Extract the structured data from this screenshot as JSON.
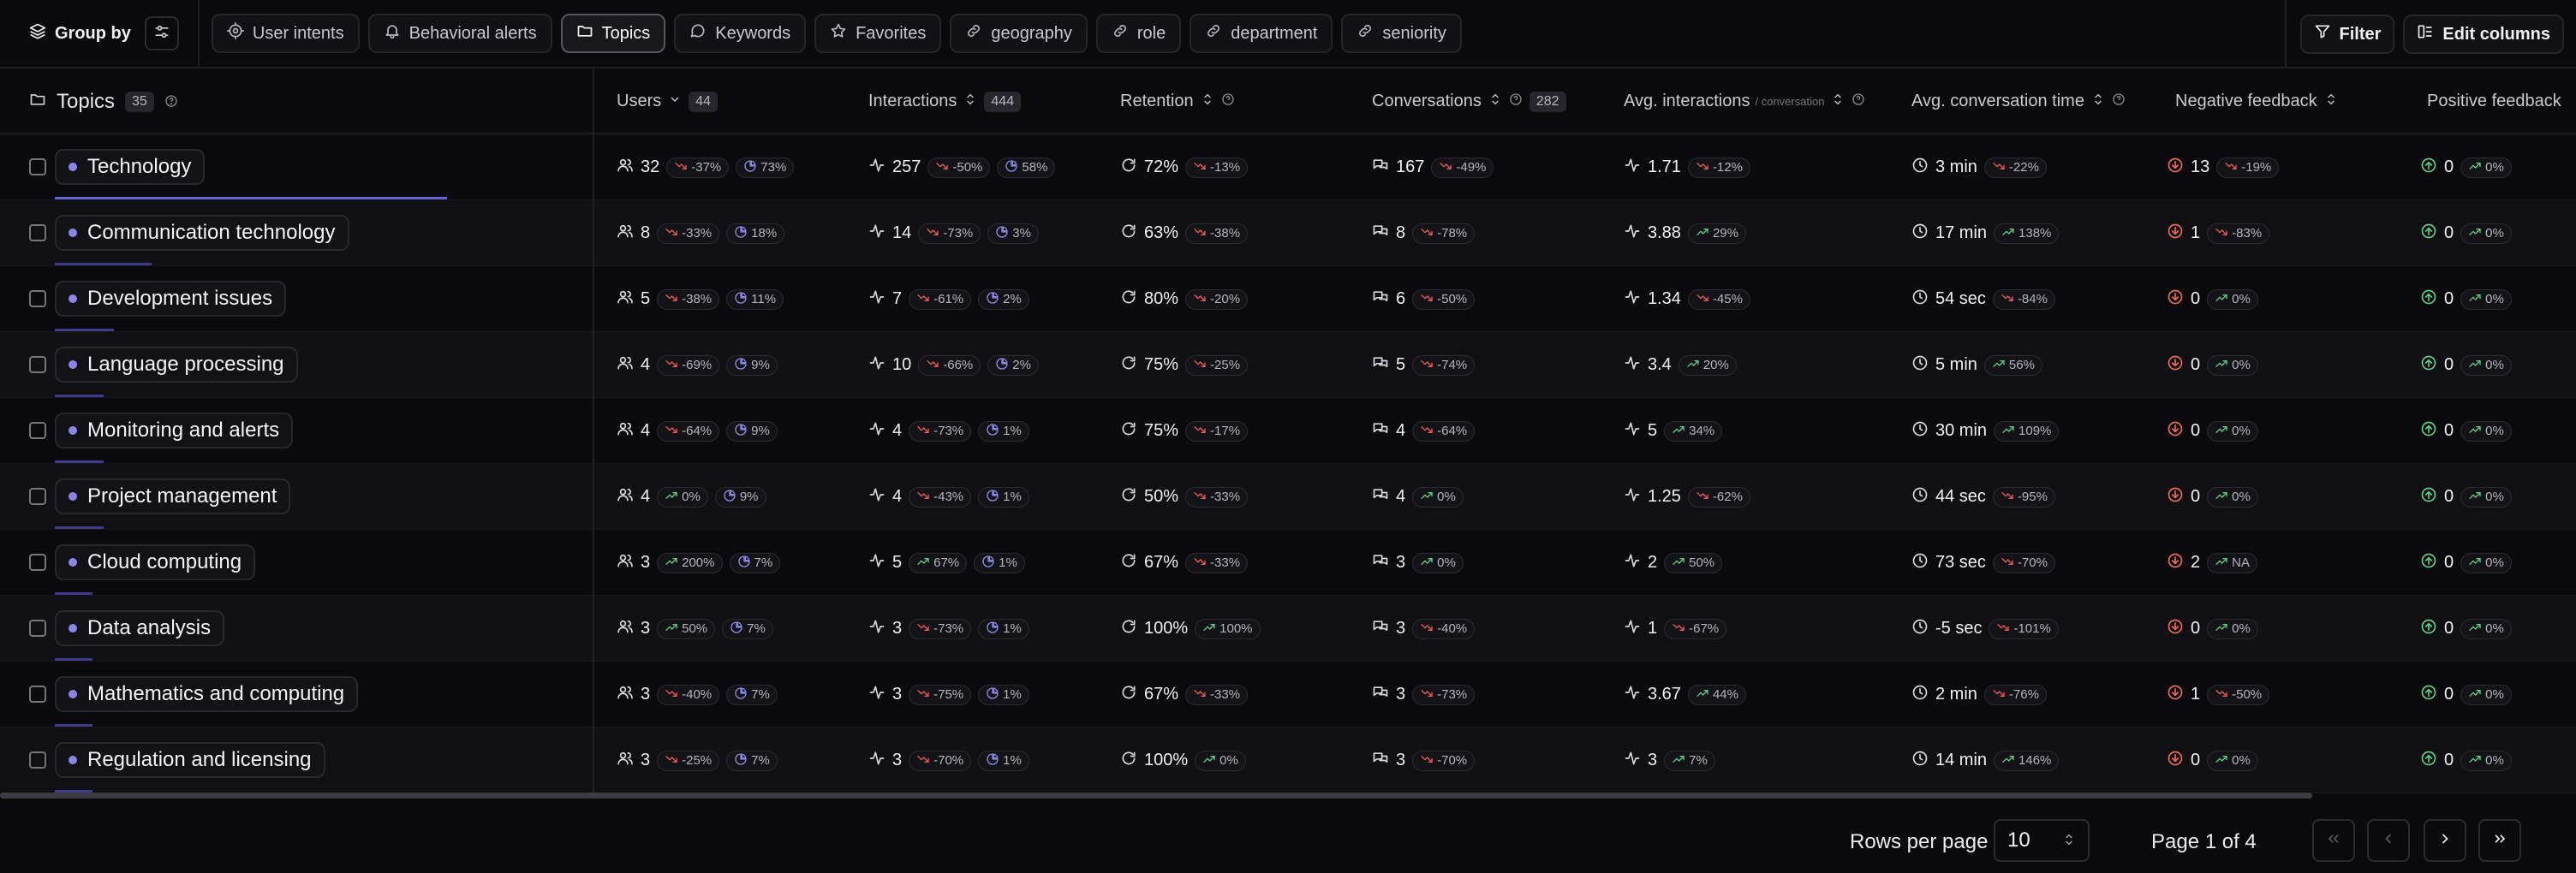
{
  "toolbar": {
    "group_by_label": "Group by",
    "tabs": [
      {
        "label": "User intents",
        "icon": "target-icon"
      },
      {
        "label": "Behavioral alerts",
        "icon": "bell-icon"
      },
      {
        "label": "Topics",
        "icon": "folder-icon",
        "active": true
      },
      {
        "label": "Keywords",
        "icon": "chat-bubble-icon"
      },
      {
        "label": "Favorites",
        "icon": "star-icon"
      },
      {
        "label": "geography",
        "icon": "link-icon"
      },
      {
        "label": "role",
        "icon": "link-icon"
      },
      {
        "label": "department",
        "icon": "link-icon"
      },
      {
        "label": "seniority",
        "icon": "link-icon"
      }
    ],
    "filter_label": "Filter",
    "edit_columns_label": "Edit columns"
  },
  "table": {
    "topics_header": "Topics",
    "topics_count": "35",
    "columns": {
      "users": {
        "label": "Users",
        "count": "44"
      },
      "interactions": {
        "label": "Interactions",
        "count": "444"
      },
      "retention": {
        "label": "Retention"
      },
      "conversations": {
        "label": "Conversations",
        "count": "282"
      },
      "avg_interactions": {
        "label": "Avg. interactions",
        "sub": "/ conversation"
      },
      "avg_conv_time": {
        "label": "Avg. conversation time"
      },
      "negative": {
        "label": "Negative feedback"
      },
      "positive": {
        "label": "Positive feedback"
      }
    },
    "rows": [
      {
        "topic": "Technology",
        "share": 0.73,
        "users": "32",
        "users_delta": "-37%",
        "users_share": "73%",
        "interactions": "257",
        "interactions_delta": "-50%",
        "interactions_share": "58%",
        "retention": "72%",
        "retention_delta": "-13%",
        "conversations": "167",
        "conversations_delta": "-49%",
        "avg_int": "1.71",
        "avg_int_delta": "-12%",
        "time": "3 min",
        "time_delta": "-22%",
        "neg": "13",
        "neg_delta": "-19%",
        "pos": "0",
        "pos_delta": "0%"
      },
      {
        "topic": "Communication technology",
        "share": 0.18,
        "users": "8",
        "users_delta": "-33%",
        "users_share": "18%",
        "interactions": "14",
        "interactions_delta": "-73%",
        "interactions_share": "3%",
        "retention": "63%",
        "retention_delta": "-38%",
        "conversations": "8",
        "conversations_delta": "-78%",
        "avg_int": "3.88",
        "avg_int_delta": "29%",
        "time": "17 min",
        "time_delta": "138%",
        "neg": "1",
        "neg_delta": "-83%",
        "pos": "0",
        "pos_delta": "0%"
      },
      {
        "topic": "Development issues",
        "share": 0.11,
        "users": "5",
        "users_delta": "-38%",
        "users_share": "11%",
        "interactions": "7",
        "interactions_delta": "-61%",
        "interactions_share": "2%",
        "retention": "80%",
        "retention_delta": "-20%",
        "conversations": "6",
        "conversations_delta": "-50%",
        "avg_int": "1.34",
        "avg_int_delta": "-45%",
        "time": "54 sec",
        "time_delta": "-84%",
        "neg": "0",
        "neg_delta": "0%",
        "pos": "0",
        "pos_delta": "0%"
      },
      {
        "topic": "Language processing",
        "share": 0.09,
        "users": "4",
        "users_delta": "-69%",
        "users_share": "9%",
        "interactions": "10",
        "interactions_delta": "-66%",
        "interactions_share": "2%",
        "retention": "75%",
        "retention_delta": "-25%",
        "conversations": "5",
        "conversations_delta": "-74%",
        "avg_int": "3.4",
        "avg_int_delta": "20%",
        "time": "5 min",
        "time_delta": "56%",
        "neg": "0",
        "neg_delta": "0%",
        "pos": "0",
        "pos_delta": "0%"
      },
      {
        "topic": "Monitoring and alerts",
        "share": 0.09,
        "users": "4",
        "users_delta": "-64%",
        "users_share": "9%",
        "interactions": "4",
        "interactions_delta": "-73%",
        "interactions_share": "1%",
        "retention": "75%",
        "retention_delta": "-17%",
        "conversations": "4",
        "conversations_delta": "-64%",
        "avg_int": "5",
        "avg_int_delta": "34%",
        "time": "30 min",
        "time_delta": "109%",
        "neg": "0",
        "neg_delta": "0%",
        "pos": "0",
        "pos_delta": "0%"
      },
      {
        "topic": "Project management",
        "share": 0.09,
        "users": "4",
        "users_delta": "0%",
        "users_share": "9%",
        "interactions": "4",
        "interactions_delta": "-43%",
        "interactions_share": "1%",
        "retention": "50%",
        "retention_delta": "-33%",
        "conversations": "4",
        "conversations_delta": "0%",
        "avg_int": "1.25",
        "avg_int_delta": "-62%",
        "time": "44 sec",
        "time_delta": "-95%",
        "neg": "0",
        "neg_delta": "0%",
        "pos": "0",
        "pos_delta": "0%"
      },
      {
        "topic": "Cloud computing",
        "share": 0.07,
        "users": "3",
        "users_delta": "200%",
        "users_share": "7%",
        "interactions": "5",
        "interactions_delta": "67%",
        "interactions_share": "1%",
        "retention": "67%",
        "retention_delta": "-33%",
        "conversations": "3",
        "conversations_delta": "0%",
        "avg_int": "2",
        "avg_int_delta": "50%",
        "time": "73 sec",
        "time_delta": "-70%",
        "neg": "2",
        "neg_delta": "NA",
        "pos": "0",
        "pos_delta": "0%"
      },
      {
        "topic": "Data analysis",
        "share": 0.07,
        "users": "3",
        "users_delta": "50%",
        "users_share": "7%",
        "interactions": "3",
        "interactions_delta": "-73%",
        "interactions_share": "1%",
        "retention": "100%",
        "retention_delta": "100%",
        "conversations": "3",
        "conversations_delta": "-40%",
        "avg_int": "1",
        "avg_int_delta": "-67%",
        "time": "-5 sec",
        "time_delta": "-101%",
        "neg": "0",
        "neg_delta": "0%",
        "pos": "0",
        "pos_delta": "0%"
      },
      {
        "topic": "Mathematics and computing",
        "share": 0.07,
        "users": "3",
        "users_delta": "-40%",
        "users_share": "7%",
        "interactions": "3",
        "interactions_delta": "-75%",
        "interactions_share": "1%",
        "retention": "67%",
        "retention_delta": "-33%",
        "conversations": "3",
        "conversations_delta": "-73%",
        "avg_int": "3.67",
        "avg_int_delta": "44%",
        "time": "2 min",
        "time_delta": "-76%",
        "neg": "1",
        "neg_delta": "-50%",
        "pos": "0",
        "pos_delta": "0%"
      },
      {
        "topic": "Regulation and licensing",
        "share": 0.07,
        "users": "3",
        "users_delta": "-25%",
        "users_share": "7%",
        "interactions": "3",
        "interactions_delta": "-70%",
        "interactions_share": "1%",
        "retention": "100%",
        "retention_delta": "0%",
        "conversations": "3",
        "conversations_delta": "-70%",
        "avg_int": "3",
        "avg_int_delta": "7%",
        "time": "14 min",
        "time_delta": "146%",
        "neg": "0",
        "neg_delta": "0%",
        "pos": "0",
        "pos_delta": "0%"
      }
    ]
  },
  "pagination": {
    "rows_per_page_label": "Rows per page",
    "rows_per_page_value": "10",
    "page_label": "Page 1 of 4"
  },
  "colors": {
    "accent": "#6a62d8",
    "down": "#ef5a5a",
    "up": "#5fcf8a"
  }
}
